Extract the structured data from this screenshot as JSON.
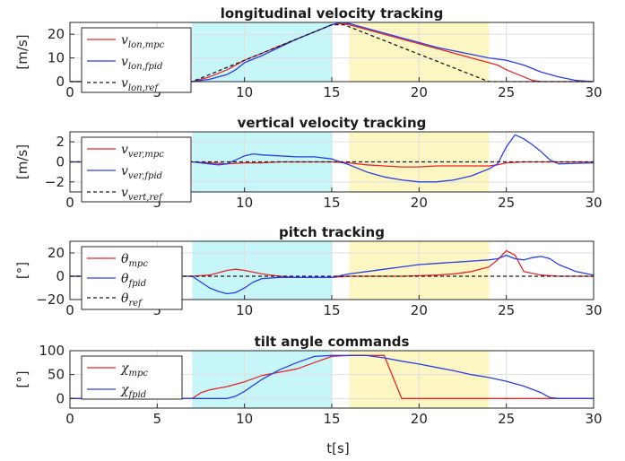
{
  "figure": {
    "xlabel": "t[s]"
  },
  "chart_data": [
    {
      "type": "line",
      "title": "longitudinal velocity tracking",
      "ylabel": "[m/s]",
      "xlim": [
        0,
        30
      ],
      "ylim": [
        0,
        25
      ],
      "xticks": [
        0,
        5,
        10,
        15,
        20,
        25,
        30
      ],
      "yticks": [
        0,
        10,
        20
      ],
      "grid": true,
      "legend_position": "top-left",
      "bands": [
        {
          "x": [
            7,
            15
          ],
          "color": "#c6f6f8"
        },
        {
          "x": [
            16,
            24
          ],
          "color": "#fbf6c2"
        }
      ],
      "series": [
        {
          "name": "v",
          "sub": "lon,mpc",
          "color": "#e8262a",
          "dash": false,
          "x": [
            0,
            7,
            8,
            9,
            10,
            11,
            12,
            13,
            14,
            15,
            15.5,
            16,
            17,
            18,
            19,
            20,
            21,
            22,
            23,
            24,
            24.5,
            25,
            26,
            26.5,
            27,
            30
          ],
          "y": [
            0,
            0,
            2,
            5,
            9,
            12,
            15,
            18,
            21,
            24,
            24.5,
            24,
            22,
            20,
            18,
            16,
            14,
            12,
            10,
            8,
            7,
            5,
            2,
            0.5,
            0,
            0
          ]
        },
        {
          "name": "v",
          "sub": "lon,fpid",
          "color": "#2a3ee6",
          "dash": false,
          "x": [
            0,
            7,
            8,
            9,
            9.5,
            10,
            11,
            12,
            13,
            14,
            15,
            15.5,
            16,
            17,
            18,
            19,
            20,
            21,
            22,
            23,
            24,
            25,
            26,
            27,
            28,
            29,
            30
          ],
          "y": [
            0,
            0,
            1,
            3,
            5,
            8,
            11,
            14.5,
            18,
            21,
            24,
            25,
            24.5,
            22.5,
            20.5,
            18.5,
            16.5,
            14.5,
            13,
            11.5,
            10,
            9,
            7,
            4,
            2,
            0.5,
            0
          ]
        },
        {
          "name": "v",
          "sub": "lon,ref",
          "color": "#1a1a1a",
          "dash": true,
          "x": [
            0,
            7,
            15,
            15.7,
            24,
            30
          ],
          "y": [
            0,
            0,
            24,
            24,
            0,
            0
          ]
        }
      ]
    },
    {
      "type": "line",
      "title": "vertical velocity tracking",
      "ylabel": "[m/s]",
      "xlim": [
        0,
        30
      ],
      "ylim": [
        -3,
        3
      ],
      "xticks": [
        0,
        5,
        10,
        15,
        20,
        25,
        30
      ],
      "yticks": [
        -2,
        0,
        2
      ],
      "grid": true,
      "legend_position": "top-left",
      "bands": [
        {
          "x": [
            7,
            15
          ],
          "color": "#c6f6f8"
        },
        {
          "x": [
            16,
            24
          ],
          "color": "#fbf6c2"
        }
      ],
      "series": [
        {
          "name": "v",
          "sub": "ver,mpc",
          "color": "#e8262a",
          "dash": false,
          "x": [
            0,
            7,
            8,
            9,
            10,
            11,
            12,
            13,
            14,
            15,
            16,
            17,
            18,
            19,
            20,
            21,
            22,
            23,
            24,
            24.5,
            25,
            26,
            27,
            28,
            30
          ],
          "y": [
            0,
            0,
            -0.1,
            -0.2,
            -0.1,
            -0.1,
            0,
            0,
            0,
            0,
            -0.1,
            -0.3,
            -0.4,
            -0.5,
            -0.5,
            -0.4,
            -0.4,
            -0.4,
            -0.4,
            -0.3,
            -0.1,
            0,
            0,
            0,
            0
          ]
        },
        {
          "name": "v",
          "sub": "ver,fpid",
          "color": "#2a3ee6",
          "dash": false,
          "x": [
            0,
            7,
            8,
            8.5,
            9,
            9.5,
            10,
            10.5,
            11,
            12,
            13,
            14,
            15,
            16,
            17,
            18,
            19,
            20,
            21,
            22,
            23,
            24,
            24.5,
            25,
            25.5,
            26,
            26.5,
            27,
            27.5,
            28,
            30
          ],
          "y": [
            0,
            0,
            -0.2,
            -0.3,
            -0.2,
            0.2,
            0.6,
            0.8,
            0.7,
            0.6,
            0.5,
            0.5,
            0.3,
            -0.3,
            -1.0,
            -1.5,
            -1.8,
            -2.0,
            -2.0,
            -1.8,
            -1.4,
            -0.7,
            -0.2,
            1.5,
            2.7,
            2.3,
            1.7,
            1.0,
            0.2,
            -0.2,
            -0.1
          ]
        },
        {
          "name": "v",
          "sub": "vert,ref",
          "color": "#1a1a1a",
          "dash": true,
          "x": [
            0,
            30
          ],
          "y": [
            0,
            0
          ]
        }
      ]
    },
    {
      "type": "line",
      "title": "pitch tracking",
      "ylabel": "[°]",
      "xlim": [
        0,
        30
      ],
      "ylim": [
        -20,
        30
      ],
      "xticks": [
        0,
        5,
        10,
        15,
        20,
        25,
        30
      ],
      "yticks": [
        -20,
        0,
        20
      ],
      "grid": true,
      "legend_position": "top-left",
      "bands": [
        {
          "x": [
            7,
            15
          ],
          "color": "#c6f6f8"
        },
        {
          "x": [
            16,
            24
          ],
          "color": "#fbf6c2"
        }
      ],
      "series": [
        {
          "name": "θ",
          "sub": "mpc",
          "color": "#e8262a",
          "dash": false,
          "x": [
            0,
            7,
            8,
            8.5,
            9,
            9.5,
            10,
            11,
            12,
            13,
            14,
            15,
            16,
            17,
            18,
            19,
            20,
            21,
            22,
            23,
            24,
            24.5,
            25,
            25.5,
            26,
            27,
            28,
            30
          ],
          "y": [
            0,
            0,
            1,
            3,
            5,
            6,
            5,
            2,
            0,
            -1,
            -1,
            -1,
            0,
            0,
            0,
            0,
            0.5,
            1,
            2,
            4,
            8,
            14,
            22,
            18,
            4,
            1,
            0,
            0
          ]
        },
        {
          "name": "θ",
          "sub": "fpid",
          "color": "#2a3ee6",
          "dash": false,
          "x": [
            0,
            7,
            7.5,
            8,
            8.5,
            9,
            9.5,
            10,
            10.5,
            11,
            12,
            13,
            14,
            15,
            16,
            17,
            18,
            19,
            20,
            21,
            22,
            23,
            24,
            24.5,
            25,
            25.5,
            26,
            26.5,
            27,
            27.5,
            28,
            29,
            30
          ],
          "y": [
            0,
            0,
            -5,
            -10,
            -13,
            -15,
            -14,
            -10,
            -5,
            -2,
            -1,
            -1,
            -1,
            -1,
            2,
            4,
            6,
            8,
            10,
            11,
            12,
            13,
            14,
            15,
            18,
            15,
            14,
            16,
            17,
            15,
            10,
            4,
            1
          ]
        },
        {
          "name": "θ",
          "sub": "ref",
          "color": "#1a1a1a",
          "dash": true,
          "x": [
            0,
            30
          ],
          "y": [
            0,
            0
          ]
        }
      ]
    },
    {
      "type": "line",
      "title": "tilt angle commands",
      "ylabel": "[°]",
      "xlim": [
        0,
        30
      ],
      "ylim": [
        -20,
        100
      ],
      "xticks": [
        0,
        5,
        10,
        15,
        20,
        25,
        30
      ],
      "yticks": [
        0,
        50,
        100
      ],
      "grid": true,
      "legend_position": "top-left",
      "bands": [
        {
          "x": [
            7,
            15
          ],
          "color": "#c6f6f8"
        },
        {
          "x": [
            16,
            24
          ],
          "color": "#fbf6c2"
        }
      ],
      "series": [
        {
          "name": "χ",
          "sub": "mpc",
          "color": "#e8262a",
          "dash": false,
          "x": [
            0,
            7,
            7.5,
            8,
            9,
            10,
            11,
            12,
            13,
            14,
            15,
            16,
            17,
            18,
            19,
            26,
            27,
            30
          ],
          "y": [
            0,
            0,
            12,
            18,
            25,
            35,
            48,
            55,
            62,
            75,
            88,
            90,
            90,
            90,
            0,
            0,
            0,
            0
          ]
        },
        {
          "name": "χ",
          "sub": "fpid",
          "color": "#2a3ee6",
          "dash": false,
          "x": [
            0,
            7,
            9,
            9.5,
            10,
            11,
            12,
            13,
            14,
            15,
            16,
            17,
            18,
            19,
            20,
            21,
            22,
            23,
            24,
            25,
            26,
            27,
            27.5,
            28,
            30
          ],
          "y": [
            0,
            0,
            0,
            5,
            15,
            40,
            60,
            75,
            88,
            90,
            90,
            90,
            85,
            78,
            72,
            65,
            58,
            50,
            44,
            36,
            26,
            12,
            2,
            0,
            0
          ]
        }
      ]
    }
  ]
}
